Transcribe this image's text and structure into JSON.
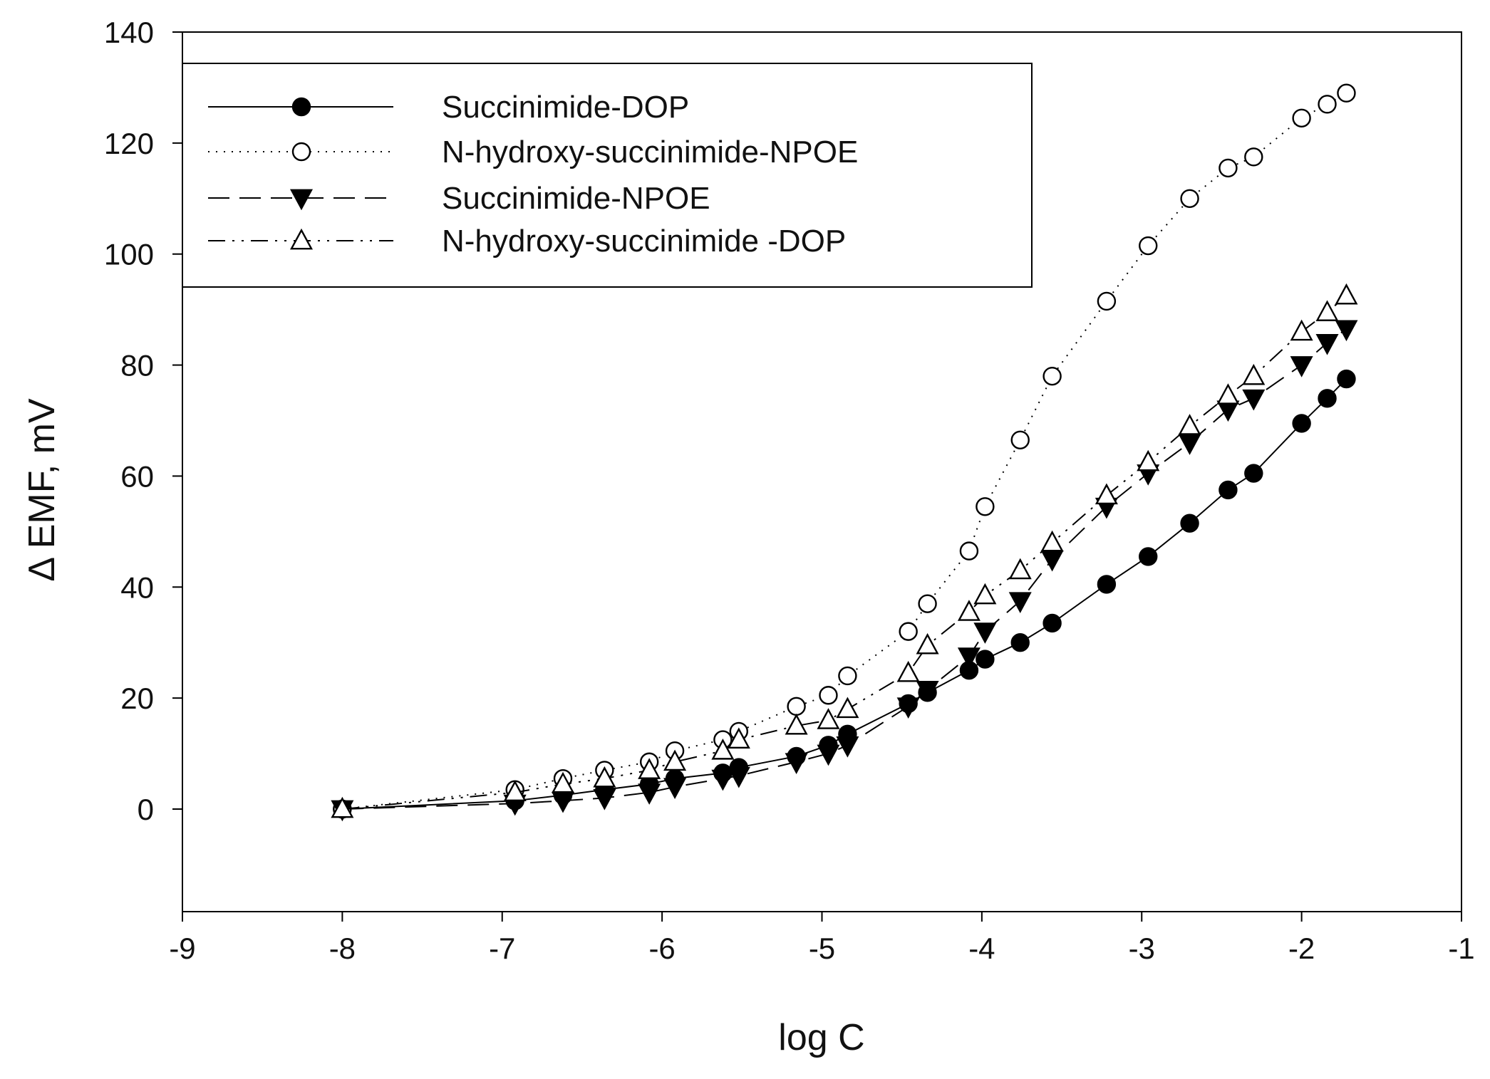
{
  "chart_data": {
    "type": "line",
    "title": "",
    "xlabel": "log C",
    "ylabel": "Δ EMF, mV",
    "xlim": [
      -9,
      -1
    ],
    "ylim": [
      -18,
      140
    ],
    "xticks": [
      -9,
      -8,
      -7,
      -6,
      -5,
      -4,
      -3,
      -2,
      -1
    ],
    "xtick_labels": [
      "-9",
      "-8",
      "-7",
      "-6",
      "-5",
      "-4",
      "-3",
      "-2",
      "-1"
    ],
    "yticks": [
      0,
      20,
      40,
      60,
      80,
      100,
      120,
      140
    ],
    "ytick_labels": [
      "0",
      "20",
      "40",
      "60",
      "80",
      "100",
      "120",
      "140"
    ],
    "grid": false,
    "legend_position": "top-left",
    "series": [
      {
        "name": "Succinimide-DOP",
        "marker": "filled-circle",
        "line": "solid",
        "color": "#000000",
        "x": [
          -8.0,
          -6.92,
          -6.62,
          -6.36,
          -6.08,
          -5.92,
          -5.62,
          -5.52,
          -5.16,
          -4.96,
          -4.84,
          -4.46,
          -4.34,
          -4.08,
          -3.98,
          -3.76,
          -3.56,
          -3.22,
          -2.96,
          -2.7,
          -2.46,
          -2.3,
          -2.0,
          -1.84,
          -1.72
        ],
        "y": [
          0.0,
          1.5,
          2.5,
          3.5,
          4.5,
          5.5,
          6.5,
          7.5,
          9.5,
          11.5,
          13.5,
          19.0,
          21.0,
          25.0,
          27.0,
          30.0,
          33.5,
          40.5,
          45.5,
          51.5,
          57.5,
          60.5,
          69.5,
          74.0,
          77.5
        ]
      },
      {
        "name": "N-hydroxy-succinimide-NPOE",
        "marker": "open-circle",
        "line": "dotted",
        "color": "#000000",
        "x": [
          -8.0,
          -6.92,
          -6.62,
          -6.36,
          -6.08,
          -5.92,
          -5.62,
          -5.52,
          -5.16,
          -4.96,
          -4.84,
          -4.46,
          -4.34,
          -4.08,
          -3.98,
          -3.76,
          -3.56,
          -3.22,
          -2.96,
          -2.7,
          -2.46,
          -2.3,
          -2.0,
          -1.84,
          -1.72
        ],
        "y": [
          0.0,
          3.5,
          5.5,
          7.0,
          8.5,
          10.5,
          12.5,
          14.0,
          18.5,
          20.5,
          24.0,
          32.0,
          37.0,
          46.5,
          54.5,
          66.5,
          78.0,
          91.5,
          101.5,
          110.0,
          115.5,
          117.5,
          124.5,
          127.0,
          129.0
        ]
      },
      {
        "name": "Succinimide-NPOE",
        "marker": "filled-triangle-down",
        "line": "dashed",
        "color": "#000000",
        "x": [
          -8.0,
          -6.92,
          -6.62,
          -6.36,
          -6.08,
          -5.92,
          -5.62,
          -5.52,
          -5.16,
          -4.96,
          -4.84,
          -4.46,
          -4.34,
          -4.08,
          -3.98,
          -3.76,
          -3.56,
          -3.22,
          -2.96,
          -2.7,
          -2.46,
          -2.3,
          -2.0,
          -1.84,
          -1.72
        ],
        "y": [
          0.0,
          1.0,
          1.5,
          2.0,
          3.0,
          4.0,
          5.5,
          6.0,
          8.5,
          10.0,
          11.5,
          18.5,
          21.5,
          27.5,
          32.0,
          37.5,
          45.0,
          54.5,
          60.5,
          66.0,
          72.0,
          74.0,
          80.0,
          84.0,
          86.5
        ]
      },
      {
        "name": "N-hydroxy-succinimide -DOP",
        "marker": "open-triangle-up",
        "line": "dash-dot-dot",
        "color": "#000000",
        "x": [
          -8.0,
          -6.92,
          -6.62,
          -6.36,
          -6.08,
          -5.92,
          -5.62,
          -5.52,
          -5.16,
          -4.96,
          -4.84,
          -4.46,
          -4.34,
          -4.08,
          -3.98,
          -3.76,
          -3.56,
          -3.22,
          -2.96,
          -2.7,
          -2.46,
          -2.3,
          -2.0,
          -1.84,
          -1.72
        ],
        "y": [
          0.0,
          3.0,
          4.5,
          5.5,
          7.0,
          8.5,
          10.5,
          12.5,
          15.0,
          16.0,
          18.0,
          24.5,
          29.5,
          35.5,
          38.5,
          43.0,
          48.0,
          56.5,
          62.5,
          69.0,
          74.5,
          78.0,
          86.0,
          89.5,
          92.5
        ]
      }
    ]
  }
}
